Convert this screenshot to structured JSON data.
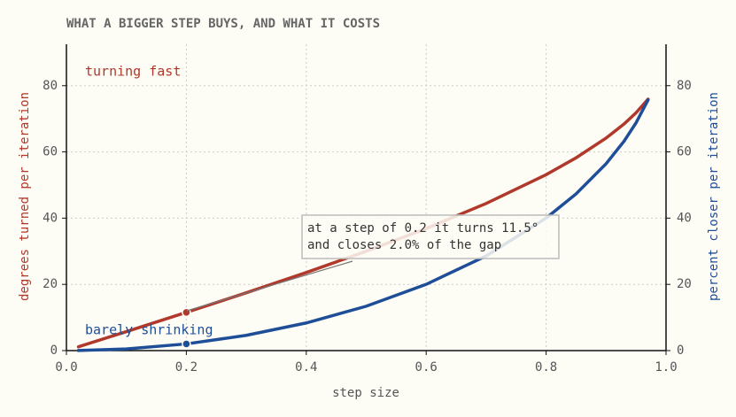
{
  "chart_data": {
    "type": "line",
    "title": "WHAT A BIGGER STEP BUYS, AND WHAT IT COSTS",
    "x_label": "step size",
    "y_label": "degrees turned per iteration",
    "y2_label": "percent closer per iteration",
    "x": [
      0.02,
      0.1,
      0.2,
      0.3,
      0.4,
      0.5,
      0.6,
      0.7,
      0.8,
      0.85,
      0.9,
      0.93,
      0.95,
      0.97
    ],
    "series": [
      {
        "name": "turning fast",
        "color": "#b0392b",
        "axis": "y",
        "values": [
          1.15,
          5.74,
          11.54,
          17.46,
          23.58,
          30,
          36.87,
          44.43,
          53.13,
          58.21,
          64.16,
          68.43,
          71.81,
          75.93
        ]
      },
      {
        "name": "barely shrinking",
        "color": "#1f4e99",
        "axis": "y2",
        "values": [
          0.02,
          0.5,
          2.02,
          4.61,
          8.35,
          13.4,
          20,
          28.59,
          40,
          47.32,
          56.41,
          63.24,
          68.78,
          75.69
        ]
      }
    ],
    "xlim": [
      0,
      1
    ],
    "xticks": [
      {
        "value": 0,
        "label": "0.0"
      },
      0.2,
      0.4,
      0.6,
      0.8,
      {
        "value": 1,
        "label": "1.0"
      }
    ],
    "ylim": [
      0,
      92.5
    ],
    "yticks": [
      0,
      20,
      40,
      60,
      80
    ],
    "y2lim": [
      0,
      92.5
    ],
    "y2ticks": [
      0,
      20,
      40,
      60,
      80
    ],
    "grid": true,
    "highlight_x": 0.2,
    "annotation": [
      "at a step of 0.2 it turns 11.5°",
      "and closes 2.0% of the gap"
    ]
  }
}
